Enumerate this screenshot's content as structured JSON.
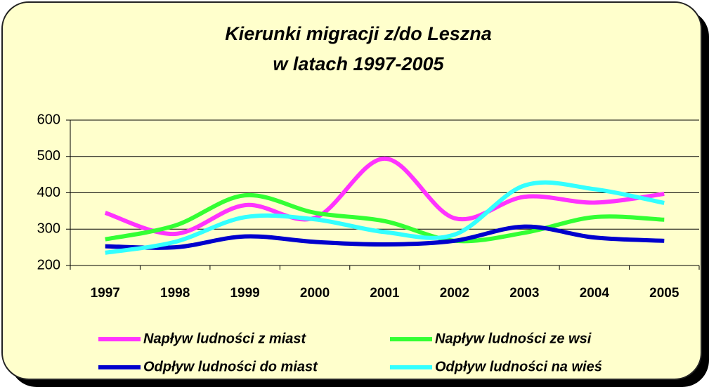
{
  "chart_data": {
    "type": "line",
    "title": [
      "Kierunki migracji z/do Leszna",
      "w latach 1997-2005"
    ],
    "categories": [
      "1997",
      "1998",
      "1999",
      "2000",
      "2001",
      "2002",
      "2003",
      "2004",
      "2005"
    ],
    "series": [
      {
        "name": "Napływ ludności z miast",
        "color": "#ff33ff",
        "values": [
          345,
          287,
          366,
          331,
          494,
          330,
          389,
          373,
          397
        ]
      },
      {
        "name": "Napływ ludności ze wsi",
        "color": "#33ff33",
        "values": [
          272,
          310,
          393,
          345,
          322,
          268,
          290,
          333,
          326
        ]
      },
      {
        "name": "Odpływ ludności do miast",
        "color": "#0000cc",
        "values": [
          253,
          250,
          280,
          265,
          258,
          268,
          307,
          277,
          268
        ]
      },
      {
        "name": "Odpływ ludności na wieś",
        "color": "#33ffff",
        "values": [
          235,
          265,
          333,
          327,
          292,
          285,
          420,
          410,
          372
        ]
      }
    ],
    "ylim": [
      200,
      600
    ],
    "yticks": [
      200,
      300,
      400,
      500,
      600
    ],
    "grid": true
  }
}
